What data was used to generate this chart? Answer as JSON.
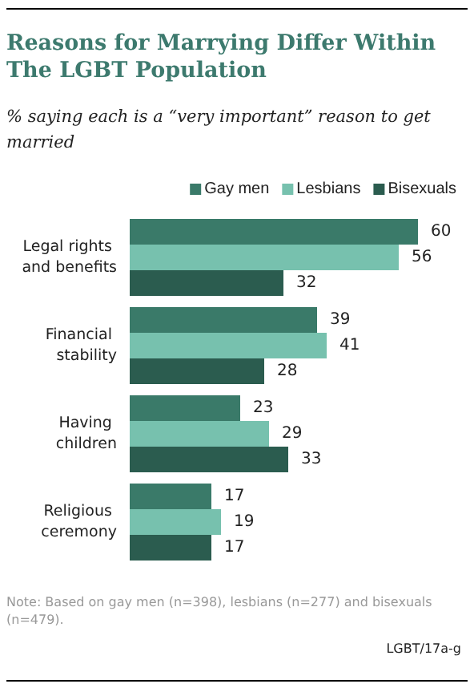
{
  "chart_data": {
    "type": "bar",
    "orientation": "horizontal",
    "title": "Reasons for Marrying Differ Within The LGBT Population",
    "subtitle": "% saying each is a “very important” reason to get married",
    "categories": [
      "Legal rights and benefits",
      "Financial stability",
      "Having children",
      "Religious ceremony"
    ],
    "series": [
      {
        "name": "Gay men",
        "color": "#3a7a69",
        "values": [
          60,
          39,
          23,
          17
        ]
      },
      {
        "name": "Lesbians",
        "color": "#77c1ae",
        "values": [
          56,
          41,
          29,
          19
        ]
      },
      {
        "name": "Bisexuals",
        "color": "#2b5c4f",
        "values": [
          32,
          28,
          33,
          17
        ]
      }
    ],
    "data_labels": true,
    "legend": "top",
    "annotations": [
      "Note: Based on gay men (n=398), lesbians (n=277) and bisexuals (n=479).",
      "LGBT/17a-g"
    ]
  }
}
